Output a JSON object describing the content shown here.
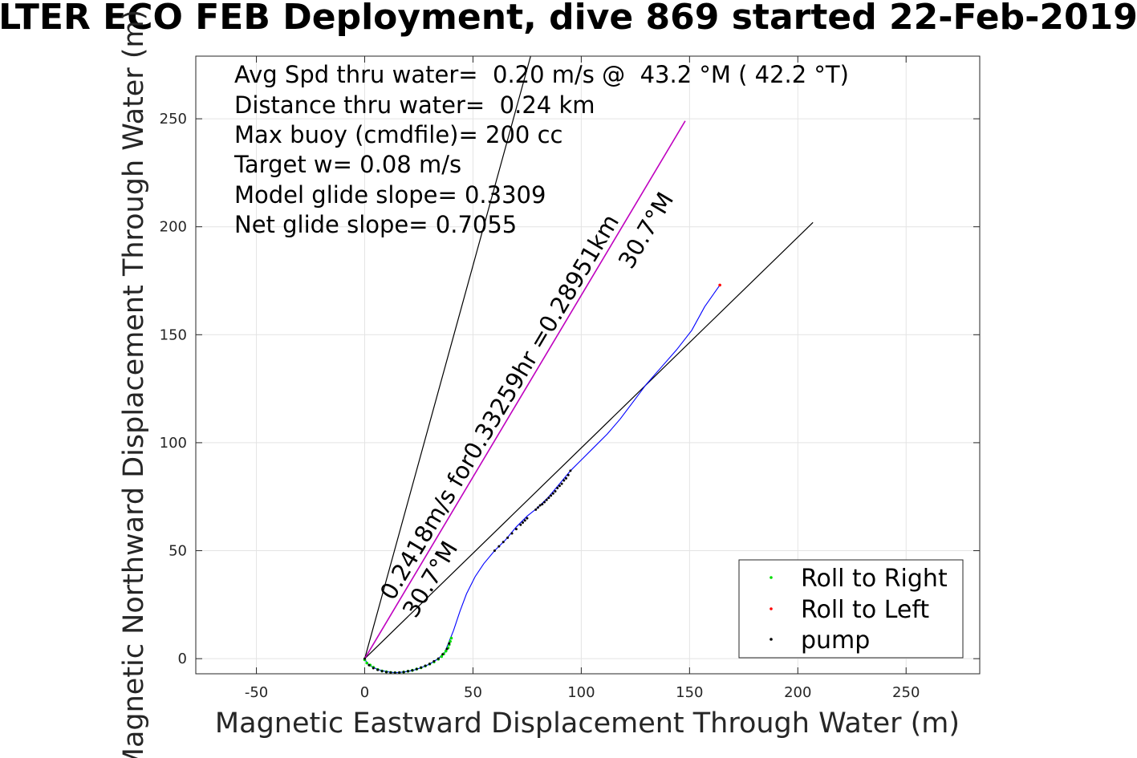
{
  "title": "LTER ECO FEB Deployment, dive 869 started 22-Feb-2019",
  "chart_data": {
    "type": "line",
    "xlabel": "Magnetic Eastward Displacement Through Water (m)",
    "ylabel": "Magnetic Northward Displacement Through Water (m)",
    "xlim": [
      -78,
      284
    ],
    "ylim": [
      -7,
      279
    ],
    "xticks": [
      -50,
      0,
      50,
      100,
      150,
      200,
      250
    ],
    "yticks": [
      0,
      50,
      100,
      150,
      200,
      250
    ],
    "grid": true,
    "info_lines": [
      "Avg Spd thru water=  0.20 m/s @  43.2 °M ( 42.2 °T)",
      "Distance thru water=  0.24 km",
      "Max buoy (cmdfile)= 200 cc",
      "Target w= 0.08 m/s",
      "Model glide slope= 0.3309",
      "Net glide slope= 0.7055"
    ],
    "annotations": {
      "heading_label": "0.2418m/s for0.33259hr =0.28951km",
      "heading_deg_a": "30.7°M",
      "heading_deg_b": "30.7°M"
    },
    "lines": [
      {
        "role": "reference-line-steep",
        "color": "#000000",
        "points": [
          [
            0,
            0
          ],
          [
            78,
            284
          ]
        ]
      },
      {
        "role": "reference-line-net",
        "color": "#000000",
        "points": [
          [
            0,
            0
          ],
          [
            207,
            202
          ]
        ]
      },
      {
        "role": "heading-line",
        "color": "#bf00bf",
        "points": [
          [
            0,
            0
          ],
          [
            148,
            249
          ]
        ]
      }
    ],
    "series": [
      {
        "role": "track",
        "color": "#0000ff",
        "values": [
          [
            0,
            0
          ],
          [
            1,
            -2
          ],
          [
            3,
            -3.5
          ],
          [
            6,
            -5
          ],
          [
            10,
            -6
          ],
          [
            14,
            -6.5
          ],
          [
            18,
            -6.2
          ],
          [
            22,
            -5.5
          ],
          [
            26,
            -4.2
          ],
          [
            30,
            -2.5
          ],
          [
            34,
            0
          ],
          [
            37,
            3
          ],
          [
            39,
            8
          ],
          [
            41,
            13
          ],
          [
            44,
            22
          ],
          [
            47,
            30
          ],
          [
            51,
            38
          ],
          [
            55,
            44
          ],
          [
            60,
            50
          ],
          [
            65,
            55
          ],
          [
            70,
            61
          ],
          [
            75,
            66
          ],
          [
            80,
            70
          ],
          [
            85,
            75
          ],
          [
            90,
            81
          ],
          [
            95,
            87
          ],
          [
            100,
            92
          ],
          [
            106,
            98
          ],
          [
            112,
            104
          ],
          [
            118,
            111
          ],
          [
            124,
            119
          ],
          [
            130,
            127
          ],
          [
            137,
            135
          ],
          [
            144,
            143
          ],
          [
            151,
            152
          ],
          [
            157,
            163
          ],
          [
            164,
            173
          ]
        ]
      },
      {
        "name": "Roll to Right",
        "color": "#00dd00",
        "values": [
          [
            0,
            -0.5
          ],
          [
            1,
            -2
          ],
          [
            2.5,
            -3
          ],
          [
            4,
            -4
          ],
          [
            6,
            -5
          ],
          [
            8,
            -5.7
          ],
          [
            10,
            -6.1
          ],
          [
            12,
            -6.4
          ],
          [
            14,
            -6.5
          ],
          [
            16,
            -6.5
          ],
          [
            18,
            -6.2
          ],
          [
            20,
            -5.8
          ],
          [
            22,
            -5.4
          ],
          [
            24,
            -4.8
          ],
          [
            26,
            -4.2
          ],
          [
            28,
            -3.4
          ],
          [
            30,
            -2.5
          ],
          [
            32,
            -1.5
          ],
          [
            34,
            -0.2
          ],
          [
            35.5,
            1
          ],
          [
            36.5,
            2.2
          ],
          [
            37.5,
            3.5
          ],
          [
            38.5,
            5
          ],
          [
            39,
            6.5
          ],
          [
            39.5,
            8
          ],
          [
            40,
            9.5
          ]
        ]
      },
      {
        "name": "Roll to Left",
        "color": "#ff0000",
        "values": [
          [
            164,
            173
          ]
        ]
      },
      {
        "name": "pump",
        "color": "#000000",
        "values": [
          [
            0,
            0
          ],
          [
            2,
            -3
          ],
          [
            4,
            -4.4
          ],
          [
            6,
            -5.2
          ],
          [
            8,
            -5.8
          ],
          [
            10,
            -6.2
          ],
          [
            12,
            -6.4
          ],
          [
            14,
            -6.5
          ],
          [
            16,
            -6.4
          ],
          [
            18,
            -6.2
          ],
          [
            20,
            -5.8
          ],
          [
            22,
            -5.4
          ],
          [
            24,
            -4.8
          ],
          [
            26,
            -4.1
          ],
          [
            28,
            -3.3
          ],
          [
            30,
            -2.4
          ],
          [
            32,
            -1.2
          ],
          [
            34,
            0
          ],
          [
            36,
            2
          ],
          [
            38,
            4.5
          ],
          [
            39,
            7
          ],
          [
            60,
            50
          ],
          [
            62,
            52
          ],
          [
            64,
            54
          ],
          [
            66,
            56
          ],
          [
            68,
            58
          ],
          [
            70,
            60
          ],
          [
            72,
            62
          ],
          [
            73,
            63
          ],
          [
            74,
            64
          ],
          [
            75,
            65
          ],
          [
            79,
            69
          ],
          [
            80,
            70
          ],
          [
            81,
            71
          ],
          [
            82,
            71.5
          ],
          [
            83,
            72.5
          ],
          [
            84,
            73.5
          ],
          [
            85,
            74.5
          ],
          [
            86,
            75.5
          ],
          [
            87,
            76.5
          ],
          [
            88,
            77.5
          ],
          [
            89,
            79
          ],
          [
            90,
            80
          ],
          [
            91,
            81
          ],
          [
            92,
            82.5
          ],
          [
            93,
            83.5
          ],
          [
            94,
            85
          ],
          [
            95,
            87
          ]
        ]
      }
    ],
    "legend": {
      "placement": "bottom-right",
      "entries": [
        {
          "label": "Roll to Right",
          "color": "#00dd00"
        },
        {
          "label": "Roll to Left",
          "color": "#ff0000"
        },
        {
          "label": "pump",
          "color": "#000000"
        }
      ]
    }
  }
}
